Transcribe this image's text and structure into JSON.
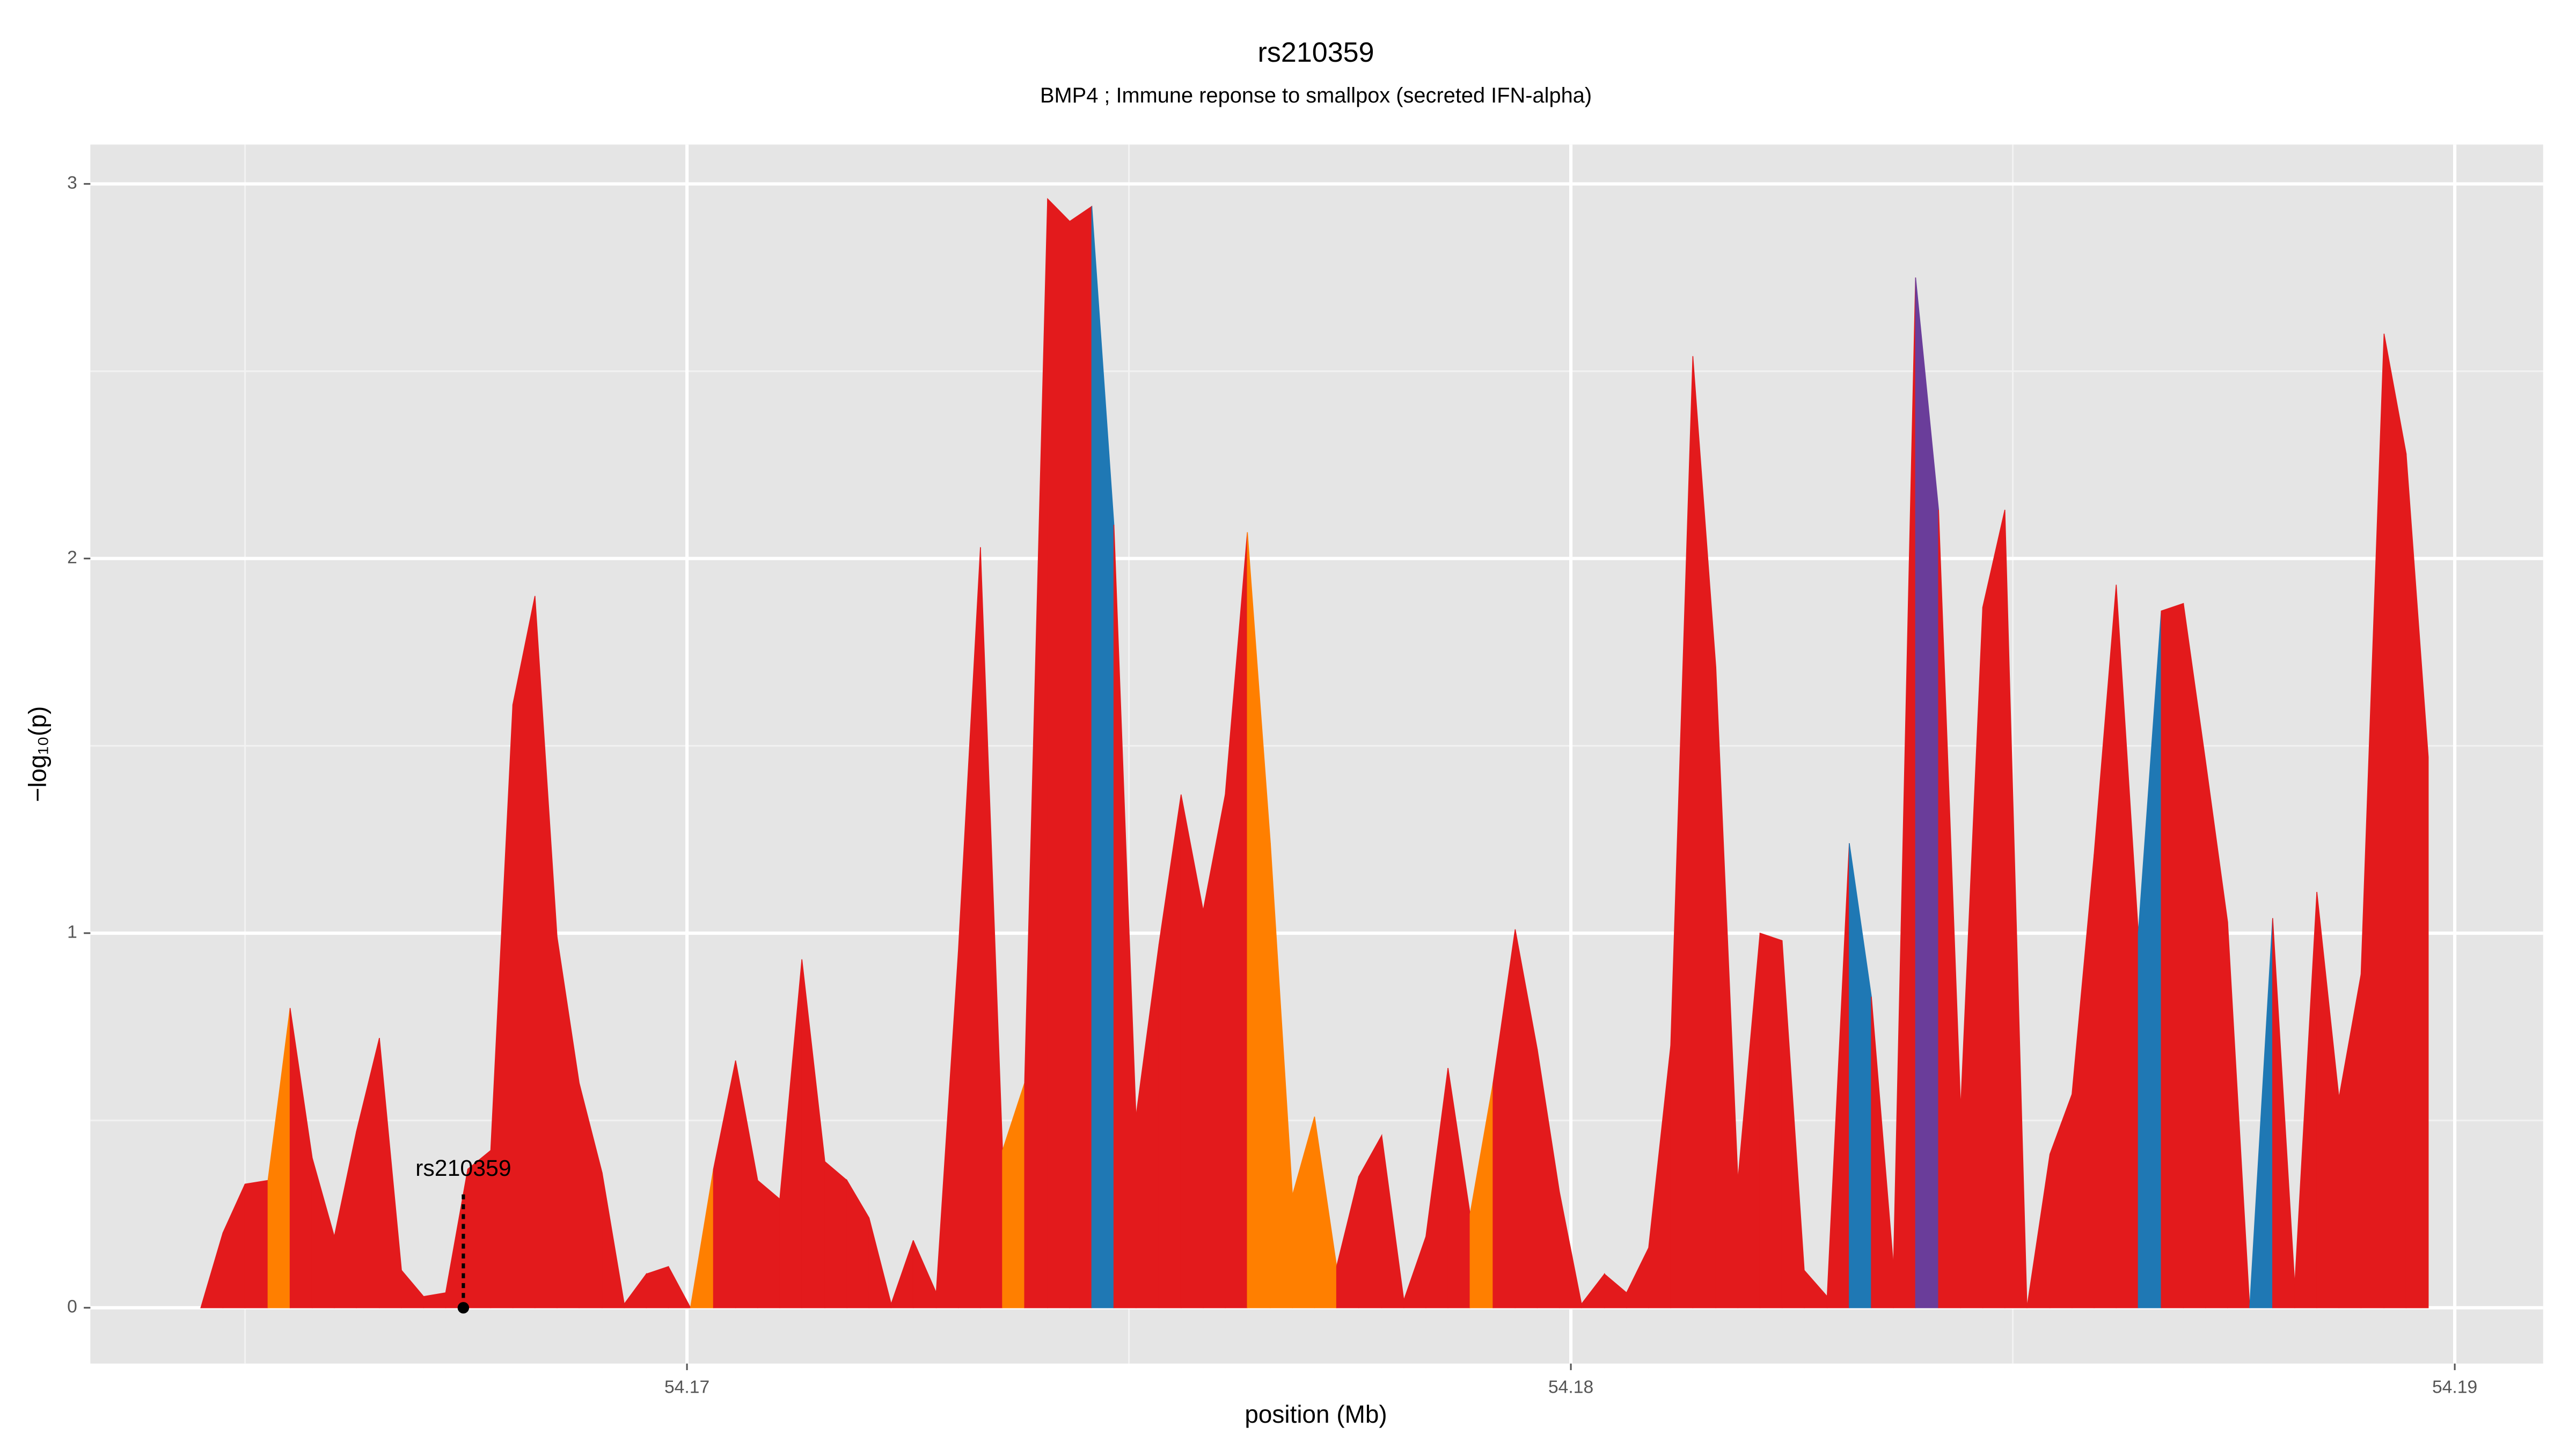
{
  "chart_data": {
    "type": "area",
    "title": "rs210359",
    "subtitle": "BMP4 ; Immune reponse to smallpox (secreted IFN-alpha)",
    "x_label": "position (Mb)",
    "y_label": "−log₁₀(p)",
    "x": [
      54.1645,
      54.16475,
      54.165,
      54.16526,
      54.16551,
      54.16576,
      54.16601,
      54.16626,
      54.16652,
      54.16677,
      54.16702,
      54.16727,
      54.16752,
      54.16778,
      54.16803,
      54.16828,
      54.16853,
      54.16878,
      54.16904,
      54.16929,
      54.16954,
      54.16979,
      54.17004,
      54.1703,
      54.17055,
      54.1708,
      54.17105,
      54.1713,
      54.17156,
      54.17181,
      54.17206,
      54.17231,
      54.17256,
      54.17282,
      54.17307,
      54.17332,
      54.17357,
      54.17382,
      54.17408,
      54.17433,
      54.17458,
      54.17483,
      54.17508,
      54.17534,
      54.17559,
      54.17584,
      54.17609,
      54.17634,
      54.1766,
      54.17685,
      54.1771,
      54.17735,
      54.1776,
      54.17786,
      54.17811,
      54.17836,
      54.17861,
      54.17886,
      54.17912,
      54.17937,
      54.17962,
      54.17987,
      54.18012,
      54.18038,
      54.18063,
      54.18088,
      54.18113,
      54.18138,
      54.18164,
      54.18189,
      54.18214,
      54.18239,
      54.18264,
      54.1829,
      54.18315,
      54.1834,
      54.18365,
      54.1839,
      54.18416,
      54.18441,
      54.18466,
      54.18491,
      54.18516,
      54.18542,
      54.18567,
      54.18592,
      54.18617,
      54.18642,
      54.18668,
      54.18693,
      54.18718,
      54.18743,
      54.18768,
      54.18794,
      54.18819,
      54.18844,
      54.18869,
      54.18894,
      54.1892,
      54.18945,
      54.1897
    ],
    "values": [
      0,
      0.2,
      0.33,
      0.34,
      0.8,
      0.4,
      0.19,
      0.47,
      0.72,
      0.1,
      0.03,
      0.04,
      0.37,
      0.42,
      1.61,
      1.9,
      0.99,
      0.6,
      0.36,
      0.01,
      0.09,
      0.11,
      0,
      0.37,
      0.66,
      0.34,
      0.29,
      0.93,
      0.39,
      0.34,
      0.24,
      0.01,
      0.18,
      0.04,
      0.95,
      2.03,
      0.42,
      0.6,
      2.96,
      2.9,
      2.94,
      2.09,
      0.51,
      0.97,
      1.37,
      1.06,
      1.37,
      2.07,
      1.24,
      0.3,
      0.51,
      0.11,
      0.35,
      0.46,
      0.02,
      0.19,
      0.64,
      0.25,
      0.6,
      1.01,
      0.69,
      0.31,
      0.01,
      0.09,
      0.04,
      0.16,
      0.7,
      2.54,
      1.71,
      0.34,
      1.0,
      0.98,
      0.1,
      0.03,
      1.24,
      0.83,
      0.11,
      2.75,
      2.13,
      0.53,
      1.87,
      2.13,
      0,
      0.41,
      0.57,
      1.21,
      1.93,
      1.0,
      1.86,
      1.88,
      1.46,
      1.03,
      0,
      1.04,
      0.06,
      1.11,
      0.56,
      0.89,
      2.6,
      2.28,
      1.47
    ],
    "segment_colors": [
      "#e31a1c",
      "#e31a1c",
      "#e31a1c",
      "#ff7f00",
      "#e31a1c",
      "#e31a1c",
      "#e31a1c",
      "#e31a1c",
      "#e31a1c",
      "#e31a1c",
      "#e31a1c",
      "#e31a1c",
      "#e31a1c",
      "#e31a1c",
      "#e31a1c",
      "#e31a1c",
      "#e31a1c",
      "#e31a1c",
      "#e31a1c",
      "#e31a1c",
      "#e31a1c",
      "#e31a1c",
      "#ff7f00",
      "#e31a1c",
      "#e31a1c",
      "#e31a1c",
      "#e31a1c",
      "#e31a1c",
      "#e31a1c",
      "#e31a1c",
      "#e31a1c",
      "#e31a1c",
      "#e31a1c",
      "#e31a1c",
      "#e31a1c",
      "#e31a1c",
      "#ff7f00",
      "#e31a1c",
      "#e31a1c",
      "#e31a1c",
      "#1f78b4",
      "#e31a1c",
      "#e31a1c",
      "#e31a1c",
      "#e31a1c",
      "#e31a1c",
      "#e31a1c",
      "#ff7f00",
      "#ff7f00",
      "#ff7f00",
      "#ff7f00",
      "#e31a1c",
      "#e31a1c",
      "#e31a1c",
      "#e31a1c",
      "#e31a1c",
      "#e31a1c",
      "#ff7f00",
      "#e31a1c",
      "#e31a1c",
      "#e31a1c",
      "#e31a1c",
      "#e31a1c",
      "#e31a1c",
      "#e31a1c",
      "#e31a1c",
      "#e31a1c",
      "#e31a1c",
      "#e31a1c",
      "#e31a1c",
      "#e31a1c",
      "#e31a1c",
      "#e31a1c",
      "#e31a1c",
      "#1f78b4",
      "#e31a1c",
      "#e31a1c",
      "#6a3d9a",
      "#e31a1c",
      "#e31a1c",
      "#e31a1c",
      "#e31a1c",
      "#e31a1c",
      "#e31a1c",
      "#e31a1c",
      "#e31a1c",
      "#e31a1c",
      "#1f78b4",
      "#e31a1c",
      "#e31a1c",
      "#e31a1c",
      "#e31a1c",
      "#1f78b4",
      "#e31a1c",
      "#e31a1c",
      "#e31a1c",
      "#e31a1c",
      "#e31a1c",
      "#e31a1c",
      "#e31a1c",
      "#e31a1c"
    ],
    "annotation": {
      "text": "rs210359",
      "x": 54.16747,
      "y": 0
    },
    "xlim": [
      54.16325,
      54.191
    ],
    "ylim": [
      -0.149,
      3.105
    ],
    "xticks": [
      54.17,
      54.18,
      54.19
    ],
    "yticks": [
      0,
      1,
      2,
      3
    ],
    "x_minor_grid": [
      54.165,
      54.175,
      54.185
    ],
    "y_minor_grid": [
      0.5,
      1.5,
      2.5
    ],
    "grid": true
  }
}
